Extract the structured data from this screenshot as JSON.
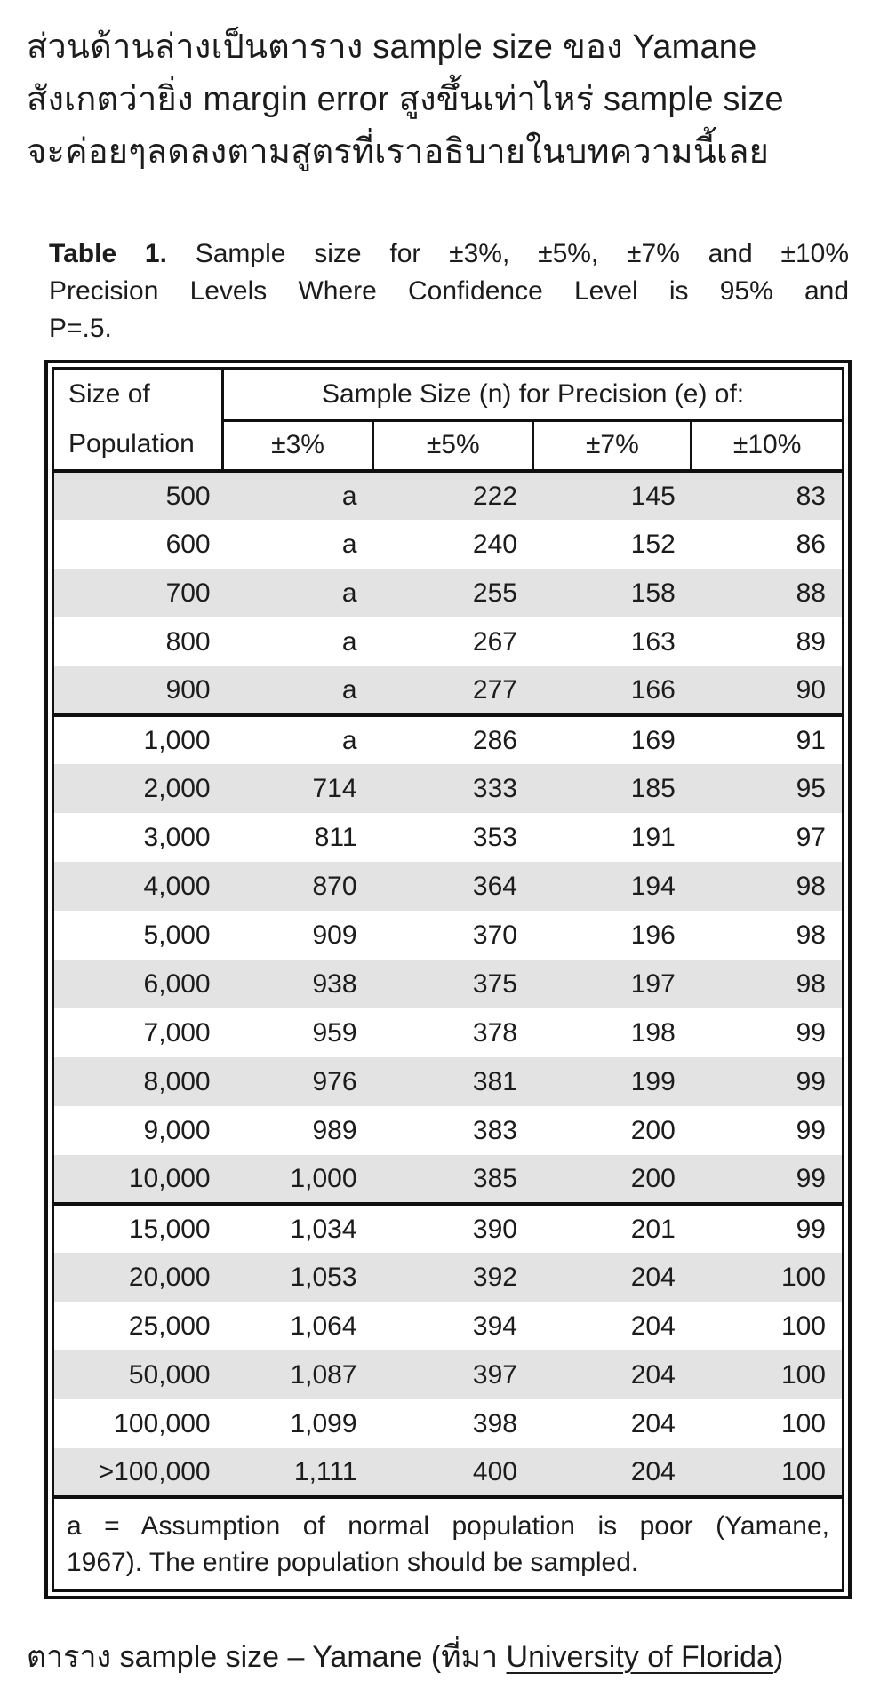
{
  "colors": {
    "text": "#1c1c1c",
    "border": "#101010",
    "row_shade": "#e3e3e3"
  },
  "intro": {
    "line1": "ส่วนด้านล่างเป็นตาราง sample size ของ Yamane",
    "line2": "สังเกตว่ายิ่ง margin error สูงขึ้นเท่าไหร่ sample size",
    "line3": "จะค่อยๆลดลงตามสูตรที่เราอธิบายในบทความนี้เลย"
  },
  "table_title": {
    "label": "Table 1.",
    "line1_rest": "Sample size for ±3%, ±5%, ±7% and ±10%",
    "line2": "Precision Levels Where Confidence Level is 95% and",
    "line3": "P=.5."
  },
  "table": {
    "header": {
      "row_label_line1": "Size of",
      "row_label_line2": "Population",
      "group_label": "Sample Size (n) for Precision (e) of:",
      "precisions": [
        "±3%",
        "±5%",
        "±7%",
        "±10%"
      ]
    },
    "groups": [
      {
        "rows": [
          [
            "500",
            "a",
            "222",
            "145",
            "83"
          ],
          [
            "600",
            "a",
            "240",
            "152",
            "86"
          ],
          [
            "700",
            "a",
            "255",
            "158",
            "88"
          ],
          [
            "800",
            "a",
            "267",
            "163",
            "89"
          ],
          [
            "900",
            "a",
            "277",
            "166",
            "90"
          ]
        ]
      },
      {
        "rows": [
          [
            "1,000",
            "a",
            "286",
            "169",
            "91"
          ],
          [
            "2,000",
            "714",
            "333",
            "185",
            "95"
          ],
          [
            "3,000",
            "811",
            "353",
            "191",
            "97"
          ],
          [
            "4,000",
            "870",
            "364",
            "194",
            "98"
          ],
          [
            "5,000",
            "909",
            "370",
            "196",
            "98"
          ],
          [
            "6,000",
            "938",
            "375",
            "197",
            "98"
          ],
          [
            "7,000",
            "959",
            "378",
            "198",
            "99"
          ],
          [
            "8,000",
            "976",
            "381",
            "199",
            "99"
          ],
          [
            "9,000",
            "989",
            "383",
            "200",
            "99"
          ],
          [
            "10,000",
            "1,000",
            "385",
            "200",
            "99"
          ]
        ]
      },
      {
        "rows": [
          [
            "15,000",
            "1,034",
            "390",
            "201",
            "99"
          ],
          [
            "20,000",
            "1,053",
            "392",
            "204",
            "100"
          ],
          [
            "25,000",
            "1,064",
            "394",
            "204",
            "100"
          ],
          [
            "50,000",
            "1,087",
            "397",
            "204",
            "100"
          ],
          [
            "100,000",
            "1,099",
            "398",
            "204",
            "100"
          ],
          [
            ">100,000",
            "1,111",
            "400",
            "204",
            "100"
          ]
        ]
      }
    ],
    "footnote_line1": "a = Assumption of normal population is poor (Yamane,",
    "footnote_line2": "1967).  The entire population should be sampled."
  },
  "caption": {
    "prefix": "ตาราง sample size – Yamane (ที่มา ",
    "link_text": "University of Florida",
    "suffix": ")"
  }
}
